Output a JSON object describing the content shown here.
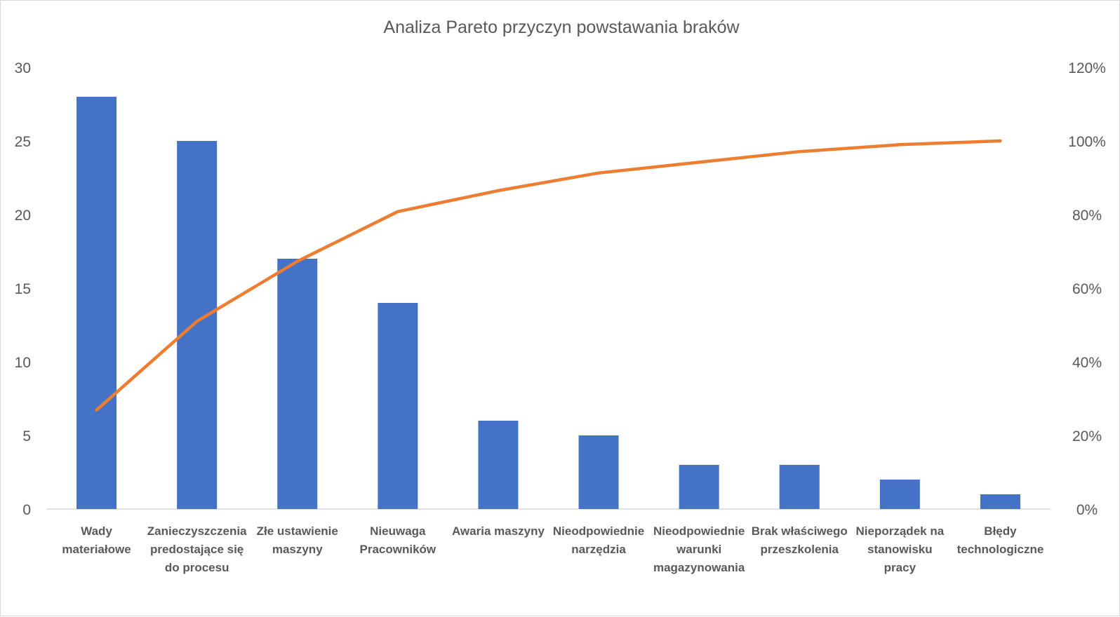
{
  "chart_data": {
    "type": "bar",
    "title": "Analiza Pareto przyczyn powstawania braków",
    "xlabel": "",
    "ylabel": "",
    "categories": [
      [
        "Wady",
        "materiałowe"
      ],
      [
        "Zanieczyszczenia",
        "predostające się",
        "do procesu"
      ],
      [
        "Złe ustawienie",
        "maszyny"
      ],
      [
        "Nieuwaga",
        "Pracowników"
      ],
      [
        "Awaria maszyny"
      ],
      [
        "Nieodpowiednie",
        "narzędzia"
      ],
      [
        "Nieodpowiednie",
        "warunki",
        "magazynowania"
      ],
      [
        "Brak właściwego",
        "przeszkolenia"
      ],
      [
        "Nieporządek na",
        "stanowisku",
        "pracy"
      ],
      [
        "Błędy",
        "technologiczne"
      ]
    ],
    "series": [
      {
        "type": "bar",
        "axis": "left",
        "values": [
          28,
          25,
          17,
          14,
          6,
          5,
          3,
          3,
          2,
          1
        ],
        "color": "#4472c4"
      },
      {
        "type": "line",
        "axis": "right",
        "values": [
          26.9,
          51.0,
          67.3,
          80.8,
          86.5,
          91.3,
          94.2,
          97.1,
          99.0,
          100.0
        ],
        "color": "#ed7d31"
      }
    ],
    "ylim": [
      0,
      30
    ],
    "yticks": [
      "0",
      "5",
      "10",
      "15",
      "20",
      "25",
      "30"
    ],
    "y2lim": [
      0,
      120
    ],
    "y2ticks": [
      "0%",
      "20%",
      "40%",
      "60%",
      "80%",
      "100%",
      "120%"
    ],
    "grid": false,
    "legend": "none"
  }
}
